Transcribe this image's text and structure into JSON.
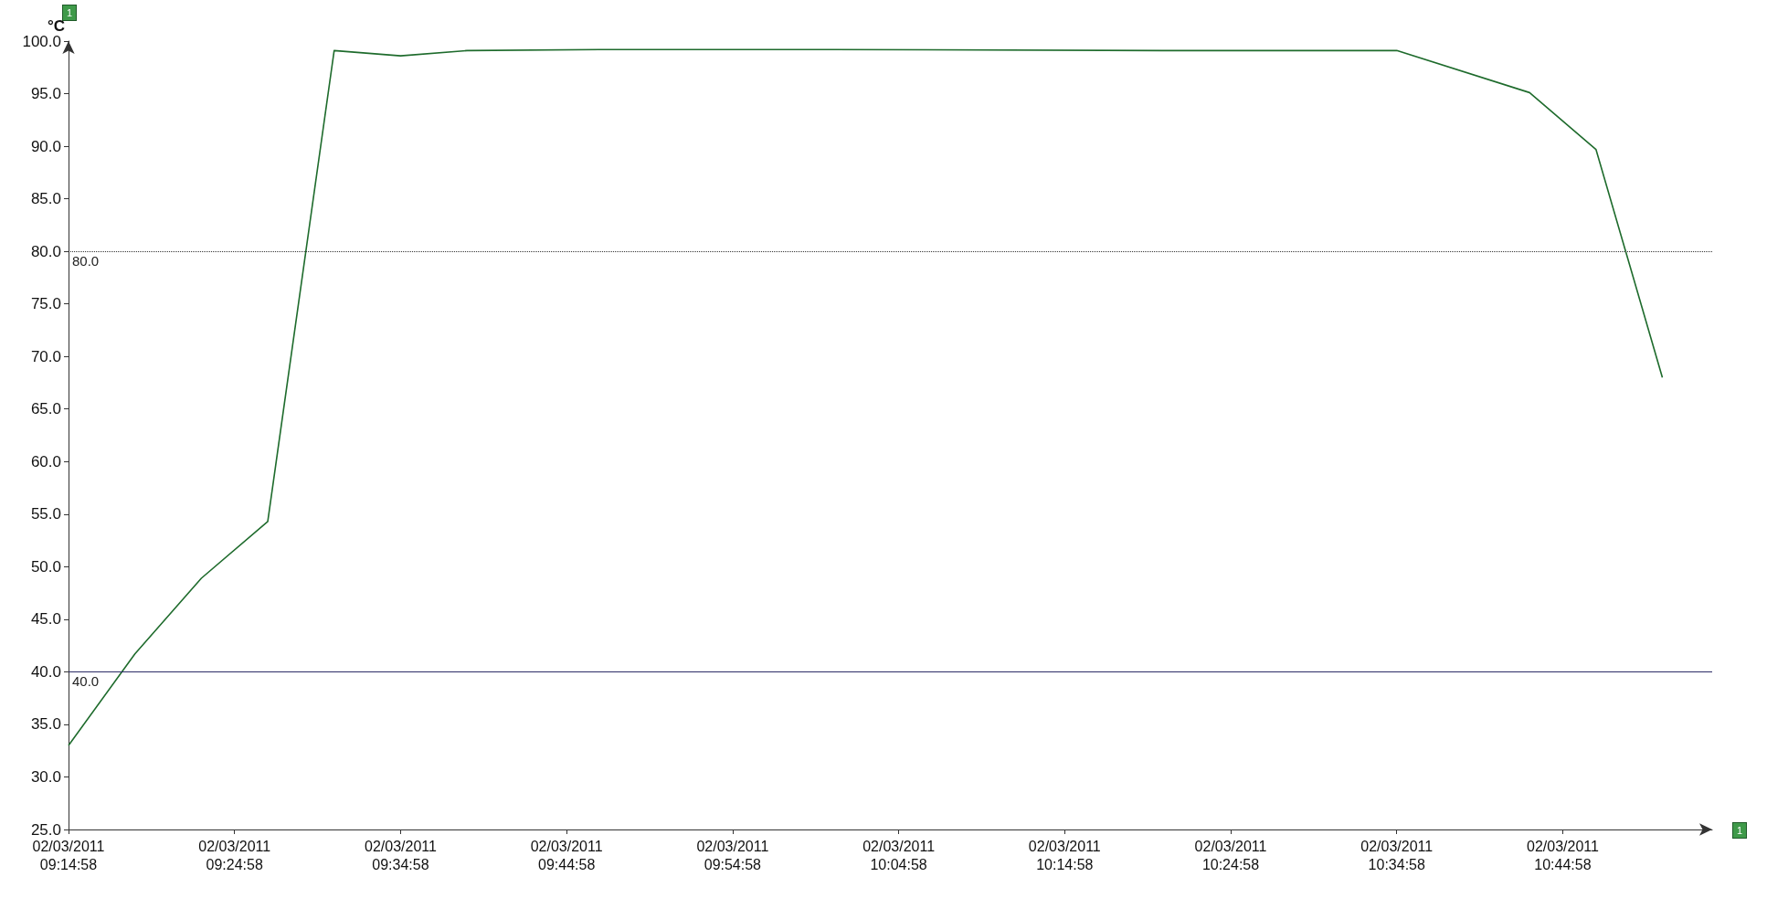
{
  "chart_data": {
    "type": "line",
    "ylabel": "°C",
    "x": [
      "2011-03-02T09:14:58",
      "2011-03-02T09:18:58",
      "2011-03-02T09:22:58",
      "2011-03-02T09:26:58",
      "2011-03-02T09:30:58",
      "2011-03-02T09:34:58",
      "2011-03-02T09:38:58",
      "2011-03-02T09:46:58",
      "2011-03-02T10:00:58",
      "2011-03-02T10:20:58",
      "2011-03-02T10:34:58",
      "2011-03-02T10:42:58",
      "2011-03-02T10:46:58",
      "2011-03-02T10:50:58"
    ],
    "series": [
      {
        "color": "#1e6b2c",
        "values": [
          33.0,
          41.7,
          48.9,
          54.3,
          99.1,
          98.6,
          99.1,
          99.2,
          99.2,
          99.1,
          99.1,
          95.1,
          89.7,
          68.0
        ]
      }
    ],
    "xlim": [
      "2011-03-02T09:14:58",
      "2011-03-02T10:53:58"
    ],
    "xticks": [
      {
        "value": "2011-03-02T09:14:58",
        "label": "02/03/2011\n09:14:58"
      },
      {
        "value": "2011-03-02T09:24:58",
        "label": "02/03/2011\n09:24:58"
      },
      {
        "value": "2011-03-02T09:34:58",
        "label": "02/03/2011\n09:34:58"
      },
      {
        "value": "2011-03-02T09:44:58",
        "label": "02/03/2011\n09:44:58"
      },
      {
        "value": "2011-03-02T09:54:58",
        "label": "02/03/2011\n09:54:58"
      },
      {
        "value": "2011-03-02T10:04:58",
        "label": "02/03/2011\n10:04:58"
      },
      {
        "value": "2011-03-02T10:14:58",
        "label": "02/03/2011\n10:14:58"
      },
      {
        "value": "2011-03-02T10:24:58",
        "label": "02/03/2011\n10:24:58"
      },
      {
        "value": "2011-03-02T10:34:58",
        "label": "02/03/2011\n10:34:58"
      },
      {
        "value": "2011-03-02T10:44:58",
        "label": "02/03/2011\n10:44:58"
      }
    ],
    "ylim": [
      25,
      100
    ],
    "yticks": [
      {
        "value": 25,
        "label": "25.0"
      },
      {
        "value": 30,
        "label": "30.0"
      },
      {
        "value": 35,
        "label": "35.0"
      },
      {
        "value": 40,
        "label": "40.0"
      },
      {
        "value": 45,
        "label": "45.0"
      },
      {
        "value": 50,
        "label": "50.0"
      },
      {
        "value": 55,
        "label": "55.0"
      },
      {
        "value": 60,
        "label": "60.0"
      },
      {
        "value": 65,
        "label": "65.0"
      },
      {
        "value": 70,
        "label": "70.0"
      },
      {
        "value": 75,
        "label": "75.0"
      },
      {
        "value": 80,
        "label": "80.0"
      },
      {
        "value": 85,
        "label": "85.0"
      },
      {
        "value": 90,
        "label": "90.0"
      },
      {
        "value": 95,
        "label": "95.0"
      },
      {
        "value": 100,
        "label": "100.0"
      }
    ],
    "ref_lines": [
      {
        "axis": "y",
        "value": 80,
        "label": "80.0",
        "color": "#333333",
        "line_style": "dotted"
      },
      {
        "axis": "y",
        "value": 40,
        "label": "40.0",
        "color": "#2b2b66",
        "line_style": "solid"
      }
    ],
    "annotations": [
      "1",
      "1"
    ],
    "grid": false,
    "marker": "none",
    "line_style": "solid"
  }
}
